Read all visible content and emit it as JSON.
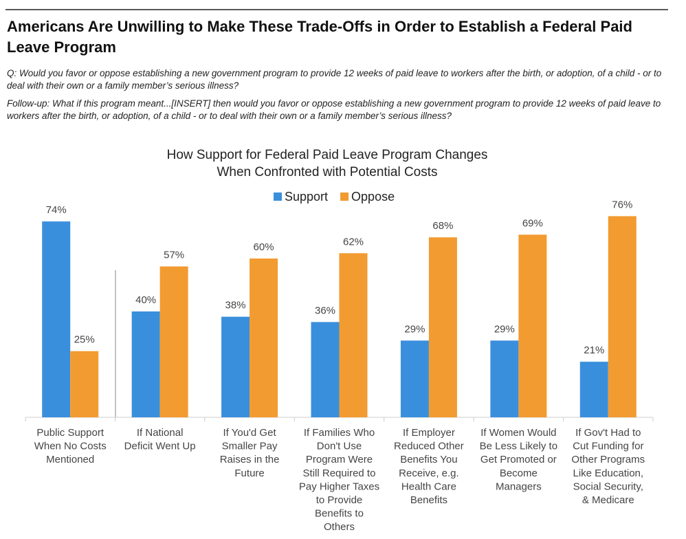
{
  "header": {
    "title": "Americans Are Unwilling to Make These Trade-Offs in Order to Establish a Federal Paid Leave Program",
    "question": "Q: Would you favor or oppose establishing a new government program to provide 12 weeks of paid leave to workers after the birth, or adoption, of a child - or to deal with their own or a family member’s serious illness?",
    "follow_up": "Follow-up: What if this program meant...[INSERT] then would you favor or oppose establishing a new government program to provide 12 weeks of paid leave to workers after the birth, or adoption, of a child - or to deal with their own or a family member’s serious illness?"
  },
  "chart_data": {
    "type": "bar",
    "title": [
      "How Support for Federal Paid Leave Program Changes",
      "When Confronted with Potential Costs"
    ],
    "categories": [
      [
        "Public Support",
        "When No Costs",
        "Mentioned"
      ],
      [
        "If National",
        "Deficit Went Up"
      ],
      [
        "If You'd Get",
        "Smaller Pay",
        "Raises in the",
        "Future"
      ],
      [
        "If Families Who",
        "Don't Use",
        "Program Were",
        "Still Required to",
        "Pay Higher Taxes",
        "to Provide",
        "Benefits to",
        "Others"
      ],
      [
        "If Employer",
        "Reduced Other",
        "Benefits You",
        "Receive, e.g.",
        "Health Care",
        "Benefits"
      ],
      [
        "If Women Would",
        "Be Less Likely to",
        "Get Promoted or",
        "Become",
        "Managers"
      ],
      [
        "If Gov't Had to",
        "Cut Funding for",
        "Other Programs",
        "Like Education,",
        "Social Security,",
        "& Medicare"
      ]
    ],
    "series": [
      {
        "name": "Support",
        "color": "#3a8fdc",
        "values": [
          74,
          40,
          38,
          36,
          29,
          29,
          21
        ],
        "value_labels": [
          "74%",
          "40%",
          "38%",
          "36%",
          "29%",
          "29%",
          "21%"
        ]
      },
      {
        "name": "Oppose",
        "color": "#f29b30",
        "values": [
          25,
          57,
          60,
          62,
          68,
          69,
          76
        ],
        "value_labels": [
          "25%",
          "57%",
          "60%",
          "62%",
          "68%",
          "69%",
          "76%"
        ]
      }
    ],
    "ylim": [
      0,
      80
    ]
  }
}
